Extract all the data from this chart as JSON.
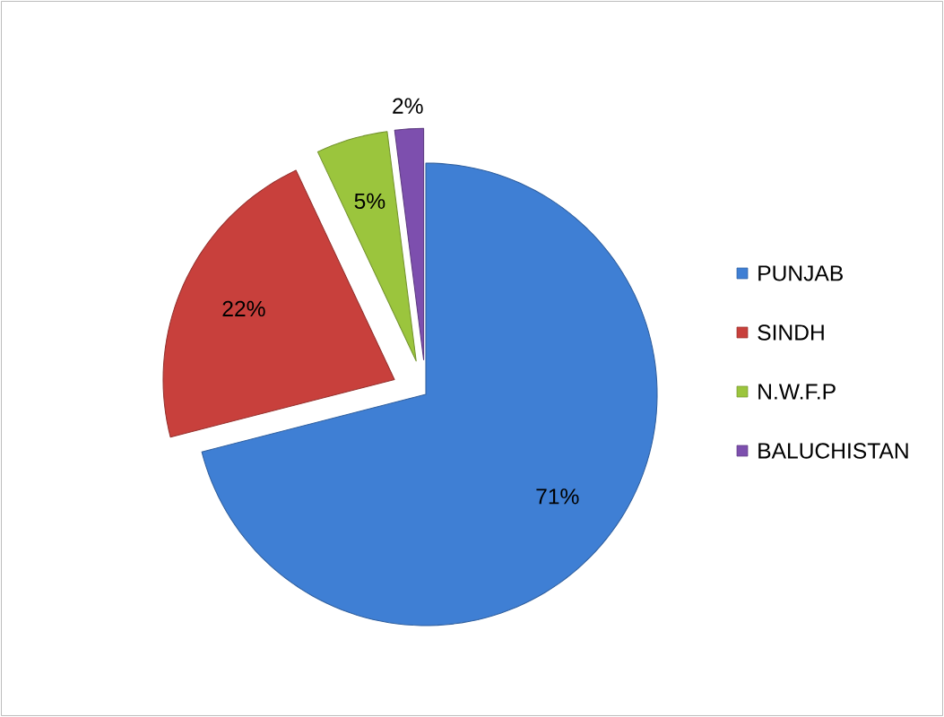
{
  "chart_data": {
    "type": "pie",
    "categories": [
      "PUNJAB",
      "SINDH",
      "N.W.F.P",
      "BALUCHISTAN"
    ],
    "values": [
      71,
      22,
      5,
      2
    ],
    "value_labels": [
      "71%",
      "22%",
      "5%",
      "2%"
    ],
    "colors": [
      "#3f7fd4",
      "#c8403c",
      "#9bc53d",
      "#7d4fae"
    ],
    "legend": "right"
  }
}
